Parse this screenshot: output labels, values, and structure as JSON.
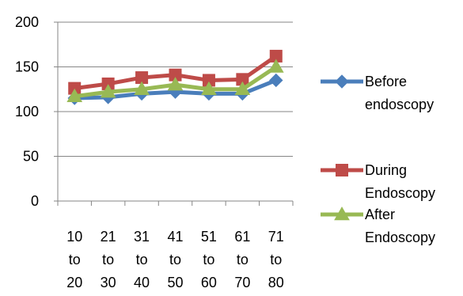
{
  "chart_data": {
    "type": "line",
    "title": "",
    "xlabel": "",
    "ylabel": "",
    "ylim": [
      0,
      200
    ],
    "yticks": [
      0,
      50,
      100,
      150,
      200
    ],
    "grid": true,
    "legend_position": "right",
    "categories": [
      [
        "10",
        "to",
        "20"
      ],
      [
        "21",
        "to",
        "30"
      ],
      [
        "31",
        "to",
        "40"
      ],
      [
        "41",
        "to",
        "50"
      ],
      [
        "51",
        "to",
        "60"
      ],
      [
        "61",
        "to",
        "70"
      ],
      [
        "71",
        "to",
        "80"
      ]
    ],
    "series": [
      {
        "name_lines": [
          "Before",
          "endoscopy"
        ],
        "color": "#4A7EBB",
        "marker": "diamond",
        "values": [
          115,
          116,
          120,
          122,
          120,
          120,
          135
        ]
      },
      {
        "name_lines": [
          "During",
          "Endoscopy"
        ],
        "color": "#BE4B48",
        "marker": "square",
        "values": [
          126,
          131,
          138,
          141,
          135,
          136,
          162
        ]
      },
      {
        "name_lines": [
          "After",
          "Endoscopy"
        ],
        "color": "#98B954",
        "marker": "triangle",
        "values": [
          117,
          122,
          125,
          130,
          125,
          125,
          150
        ]
      }
    ]
  }
}
